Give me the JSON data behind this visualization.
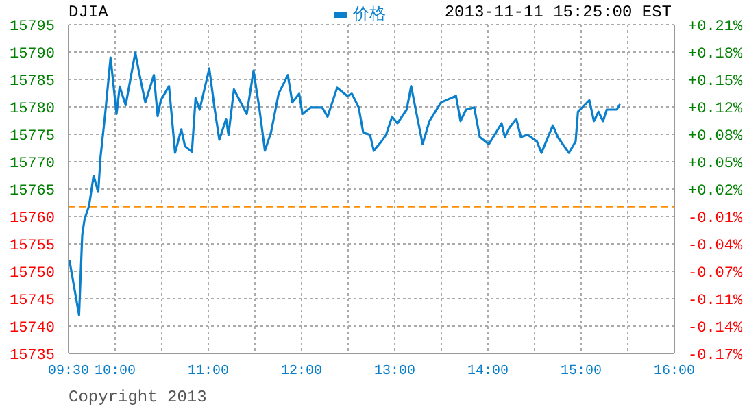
{
  "chart_data": {
    "type": "line",
    "title": "DJIA",
    "annotations": [
      "2013-11-11 15:25:00 EST",
      "Copyright 2013"
    ],
    "x": [
      9.51,
      9.613,
      9.647,
      9.672,
      9.721,
      9.769,
      9.819,
      9.843,
      9.893,
      9.951,
      10.015,
      10.049,
      10.113,
      10.216,
      10.26,
      10.324,
      10.416,
      10.456,
      10.49,
      10.578,
      10.643,
      10.71,
      10.75,
      10.824,
      10.863,
      10.907,
      11.01,
      11.069,
      11.118,
      11.191,
      11.216,
      11.275,
      11.412,
      11.485,
      11.549,
      11.607,
      11.672,
      11.754,
      11.853,
      11.901,
      11.975,
      12.01,
      12.099,
      12.221,
      12.279,
      12.382,
      12.49,
      12.54,
      12.613,
      12.662,
      12.735,
      12.775,
      12.857,
      12.907,
      12.971,
      13.029,
      13.128,
      13.176,
      13.225,
      13.299,
      13.372,
      13.496,
      13.657,
      13.706,
      13.765,
      13.853,
      13.912,
      14.01,
      14.147,
      14.181,
      14.231,
      14.304,
      14.353,
      14.426,
      14.525,
      14.574,
      14.696,
      14.749,
      14.868,
      14.941,
      14.966,
      15.088,
      15.137,
      15.186,
      15.235,
      15.275,
      15.382,
      15.417
    ],
    "series": [
      {
        "name": "价格",
        "color": "#0a7fcb",
        "values": [
          15752,
          15742,
          15756.6,
          15759.5,
          15762,
          15767.4,
          15764.5,
          15770.8,
          15778.7,
          15789,
          15778.7,
          15783.7,
          15780.3,
          15789.9,
          15786,
          15780.8,
          15785.8,
          15778.3,
          15781.2,
          15783.8,
          15771.6,
          15775.9,
          15772.8,
          15771.8,
          15781.6,
          15779.5,
          15787,
          15779.5,
          15774,
          15777.8,
          15774.9,
          15783.2,
          15778.7,
          15786.6,
          15779.5,
          15772,
          15775.3,
          15782.4,
          15785.8,
          15780.8,
          15782.4,
          15778.7,
          15779.9,
          15779.9,
          15778.2,
          15783.5,
          15782,
          15782.4,
          15779.9,
          15775.3,
          15774.9,
          15772,
          15773.7,
          15774.9,
          15778.2,
          15777,
          15779.5,
          15783.8,
          15779.5,
          15773.2,
          15777.4,
          15780.8,
          15782,
          15777.4,
          15779.5,
          15779.9,
          15774.5,
          15773.2,
          15777,
          15774.5,
          15776.2,
          15777.8,
          15774.5,
          15774.9,
          15773.7,
          15771.6,
          15776.6,
          15774.5,
          15771.6,
          15773.7,
          15779.1,
          15781.2,
          15777.4,
          15779.1,
          15777.4,
          15779.5,
          15779.5,
          15780.5
        ]
      }
    ],
    "xlim": [
      9.5,
      16
    ],
    "xticks": [
      {
        "value": 9.5,
        "label": "09:30"
      },
      {
        "value": 10,
        "label": "10:00"
      },
      {
        "value": 10.5,
        "label": null
      },
      {
        "value": 11,
        "label": "11:00"
      },
      {
        "value": 11.5,
        "label": null
      },
      {
        "value": 12,
        "label": "12:00"
      },
      {
        "value": 12.5,
        "label": null
      },
      {
        "value": 13,
        "label": "13:00"
      },
      {
        "value": 13.5,
        "label": null
      },
      {
        "value": 14,
        "label": "14:00"
      },
      {
        "value": 14.5,
        "label": null
      },
      {
        "value": 15,
        "label": "15:00"
      },
      {
        "value": 15.5,
        "label": null
      },
      {
        "value": 16,
        "label": "16:00"
      }
    ],
    "ylim": [
      15735,
      15795
    ],
    "yticks": [
      15735,
      15740,
      15745,
      15750,
      15755,
      15760,
      15765,
      15770,
      15775,
      15780,
      15785,
      15790,
      15795
    ],
    "y2lim": [
      -0.17,
      0.2106
    ],
    "y2ticks": [
      {
        "value": -0.17,
        "label": "-0.17%"
      },
      {
        "value": -0.1383,
        "label": "-0.14%"
      },
      {
        "value": -0.1066,
        "label": "-0.11%"
      },
      {
        "value": -0.0749,
        "label": "-0.07%"
      },
      {
        "value": -0.0431,
        "label": "-0.04%"
      },
      {
        "value": -0.0114,
        "label": "-0.01%"
      },
      {
        "value": 0.0203,
        "label": "+0.02%"
      },
      {
        "value": 0.052,
        "label": "+0.05%"
      },
      {
        "value": 0.0838,
        "label": "+0.08%"
      },
      {
        "value": 0.1155,
        "label": "+0.12%"
      },
      {
        "value": 0.1472,
        "label": "+0.15%"
      },
      {
        "value": 0.1789,
        "label": "+0.18%"
      },
      {
        "value": 0.2106,
        "label": "+0.21%"
      }
    ],
    "ref_lines": [
      {
        "axis": "y",
        "value": 15761.8,
        "color": "#ff8c00",
        "line_style": "dashed"
      }
    ],
    "grid": true,
    "legend": "top",
    "marker": "none",
    "line_style": "solid"
  }
}
